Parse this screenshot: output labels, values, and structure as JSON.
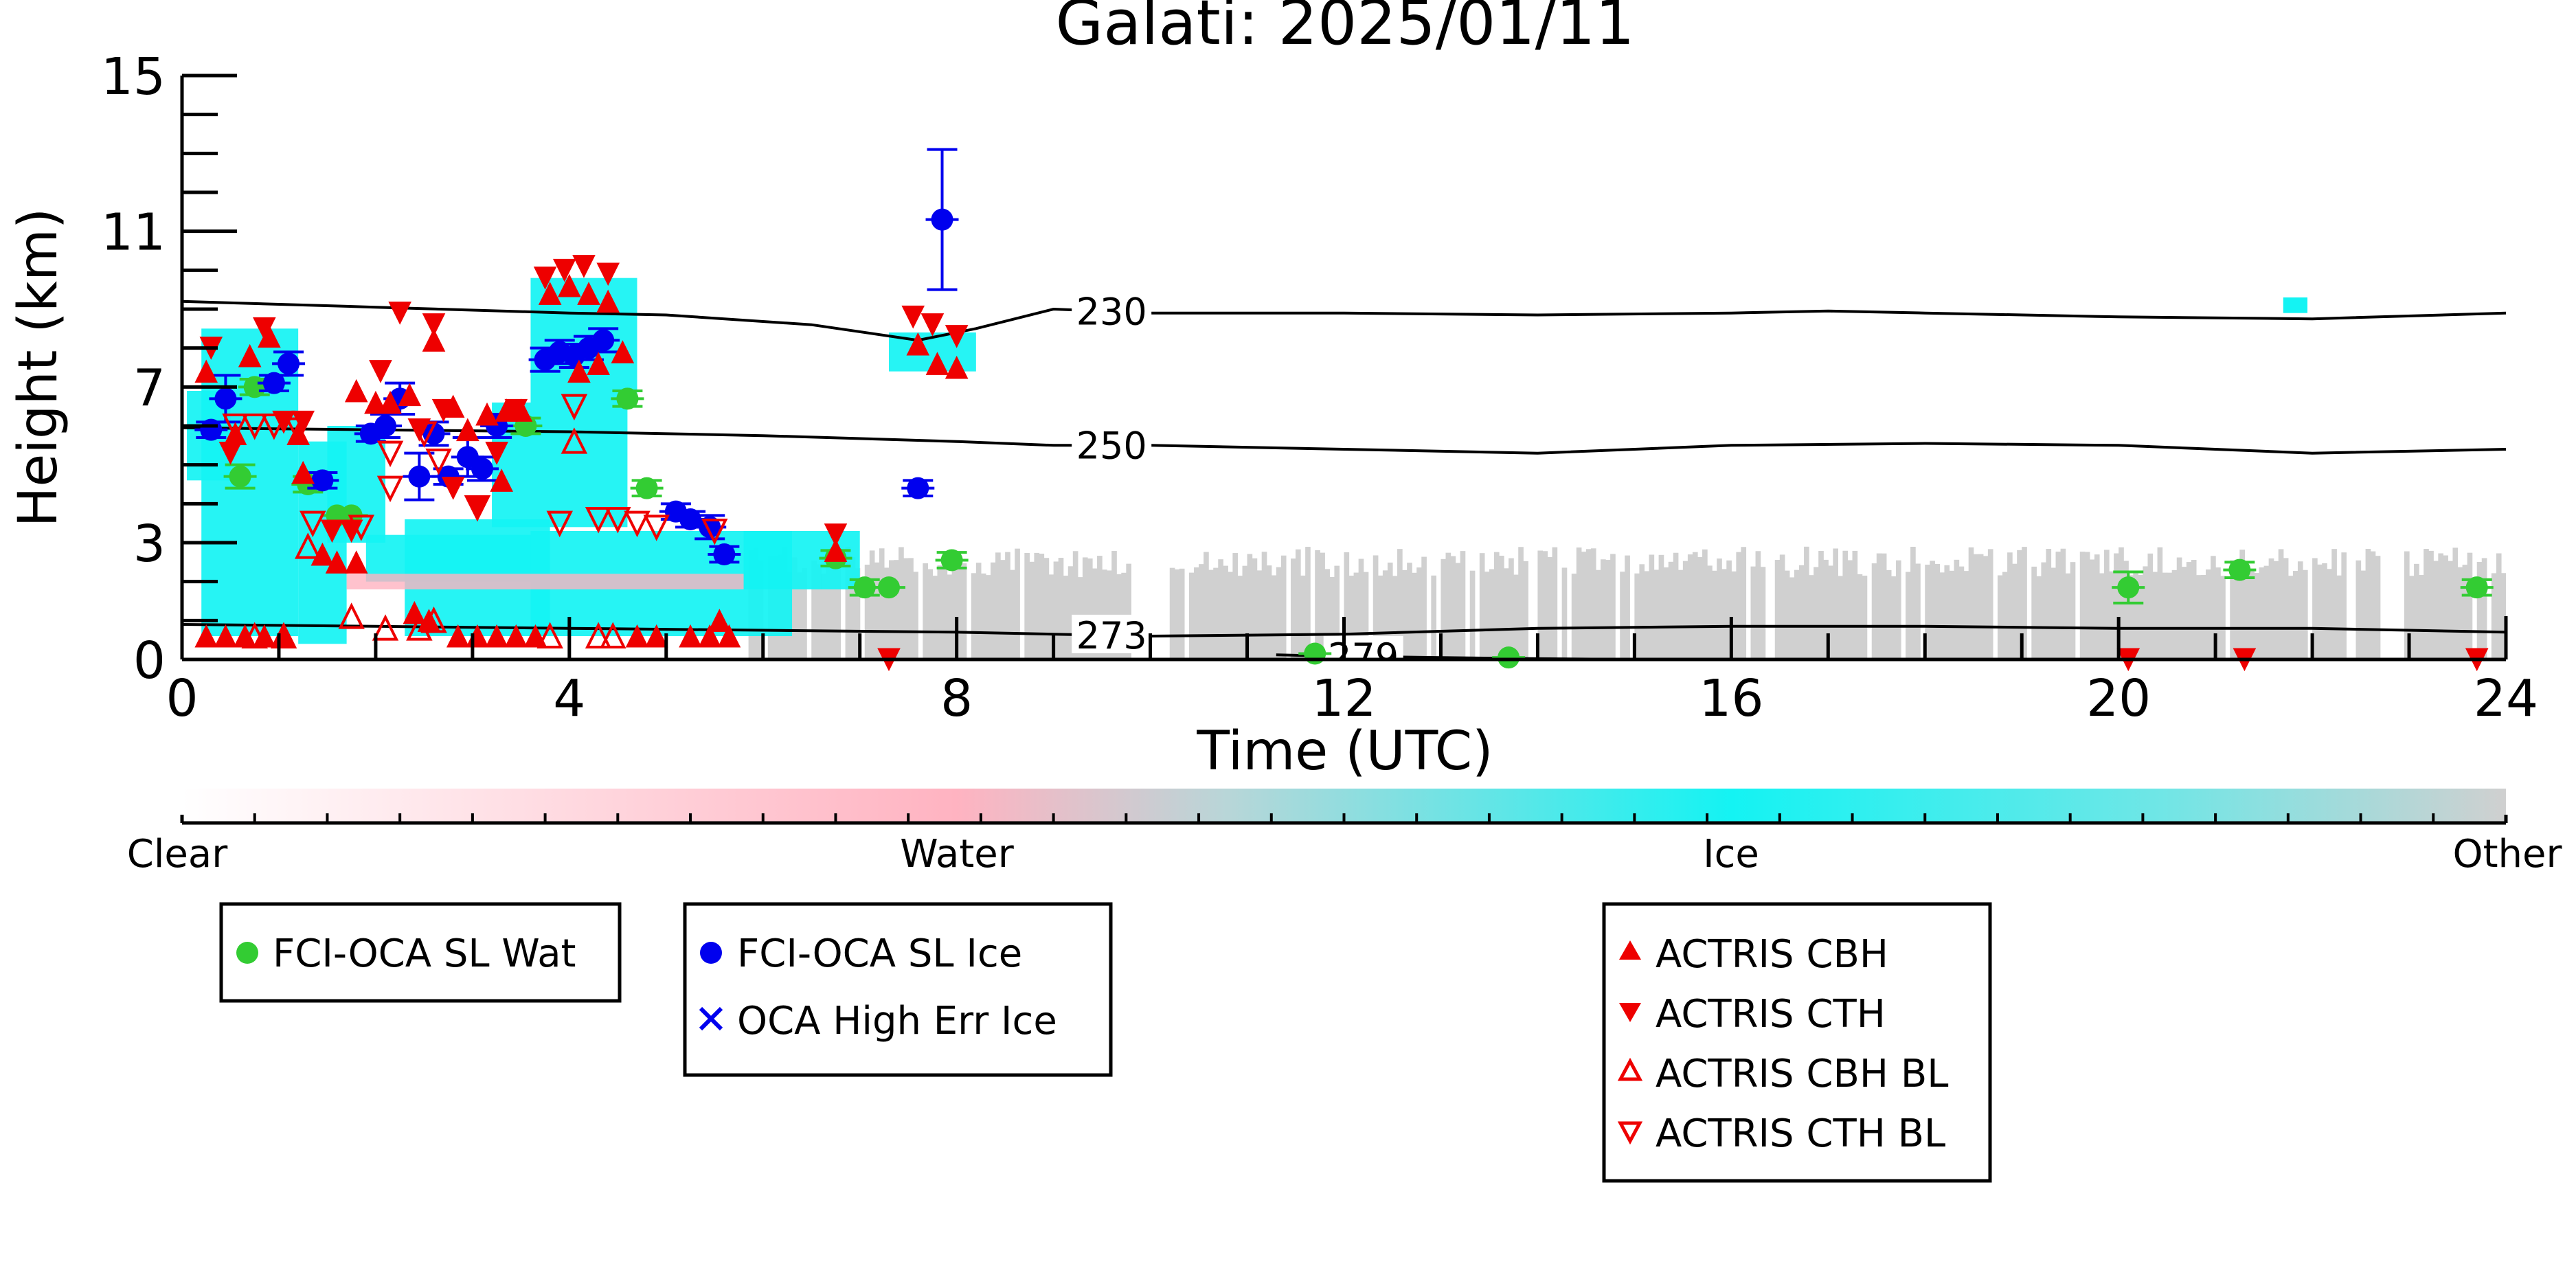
{
  "chart_data": {
    "type": "scatter",
    "title": "Galati: 2025/01/11",
    "xlabel": "Time (UTC)",
    "ylabel": "Height (km)",
    "xlim": [
      0,
      24
    ],
    "ylim": [
      0,
      15
    ],
    "xticks": [
      0,
      4,
      8,
      12,
      16,
      20,
      24
    ],
    "yticks": [
      0,
      3,
      7,
      11,
      15
    ],
    "grid": false,
    "colorbar": {
      "labels": [
        "Clear",
        "Water",
        "Ice",
        "Other"
      ],
      "colors": {
        "clear": "#ffffff",
        "water": "#ffb3c1",
        "ice": "#14f3f3",
        "other": "#d0d0d0"
      }
    },
    "isotherms": [
      {
        "label": "230",
        "label_x": 9.6,
        "points": [
          [
            0,
            9.2
          ],
          [
            2,
            9.05
          ],
          [
            4,
            8.9
          ],
          [
            5,
            8.85
          ],
          [
            6.5,
            8.6
          ],
          [
            7.6,
            8.2
          ],
          [
            8.2,
            8.5
          ],
          [
            9,
            9.0
          ],
          [
            10,
            8.9
          ],
          [
            12,
            8.9
          ],
          [
            14,
            8.85
          ],
          [
            16,
            8.9
          ],
          [
            17,
            8.95
          ],
          [
            18,
            8.9
          ],
          [
            20,
            8.8
          ],
          [
            22,
            8.75
          ],
          [
            24,
            8.9
          ]
        ]
      },
      {
        "label": "250",
        "label_x": 9.6,
        "points": [
          [
            0,
            5.95
          ],
          [
            2,
            5.9
          ],
          [
            4,
            5.85
          ],
          [
            6,
            5.75
          ],
          [
            8,
            5.6
          ],
          [
            9,
            5.5
          ],
          [
            10,
            5.5
          ],
          [
            12,
            5.4
          ],
          [
            14,
            5.3
          ],
          [
            16,
            5.5
          ],
          [
            18,
            5.55
          ],
          [
            20,
            5.5
          ],
          [
            22,
            5.3
          ],
          [
            24,
            5.4
          ]
        ]
      },
      {
        "label": "273",
        "label_x": 9.6,
        "points": [
          [
            0,
            0.9
          ],
          [
            2,
            0.85
          ],
          [
            4,
            0.8
          ],
          [
            6,
            0.75
          ],
          [
            8,
            0.7
          ],
          [
            9,
            0.65
          ],
          [
            10,
            0.6
          ],
          [
            12,
            0.65
          ],
          [
            14,
            0.8
          ],
          [
            16,
            0.85
          ],
          [
            18,
            0.85
          ],
          [
            20,
            0.8
          ],
          [
            22,
            0.8
          ],
          [
            23,
            0.75
          ],
          [
            24,
            0.7
          ]
        ]
      },
      {
        "label": "279",
        "label_x": 12.2,
        "points": [
          [
            11.3,
            0.12
          ],
          [
            12,
            0.08
          ],
          [
            13,
            0.05
          ],
          [
            14,
            0.02
          ],
          [
            15,
            0.0
          ]
        ]
      }
    ],
    "legends": [
      {
        "entries": [
          {
            "marker": "circle",
            "color": "#33cc33",
            "label": "FCI-OCA SL Wat"
          }
        ]
      },
      {
        "entries": [
          {
            "marker": "circle",
            "color": "#0000ee",
            "label": "FCI-OCA SL Ice"
          },
          {
            "marker": "x",
            "color": "#0000ee",
            "label": "OCA High Err Ice"
          }
        ]
      },
      {
        "entries": [
          {
            "marker": "triangle-up",
            "color": "#ee0000",
            "label": "ACTRIS CBH"
          },
          {
            "marker": "triangle-down",
            "color": "#ee0000",
            "label": "ACTRIS CTH"
          },
          {
            "marker": "triangle-up-open",
            "color": "#ee0000",
            "label": "ACTRIS CBH BL"
          },
          {
            "marker": "triangle-down-open",
            "color": "#ee0000",
            "label": "ACTRIS CTH BL"
          }
        ]
      }
    ],
    "series": [
      {
        "name": "FCI-OCA SL Wat",
        "color": "#33cc33",
        "points": [
          {
            "x": 0.6,
            "y": 4.7,
            "err": 0.3
          },
          {
            "x": 0.75,
            "y": 7.0,
            "err": 0.2
          },
          {
            "x": 1.3,
            "y": 4.5,
            "err": 0.2
          },
          {
            "x": 1.6,
            "y": 3.7
          },
          {
            "x": 1.75,
            "y": 3.7
          },
          {
            "x": 3.55,
            "y": 6.0,
            "err": 0.2
          },
          {
            "x": 4.6,
            "y": 6.7,
            "err": 0.2
          },
          {
            "x": 4.8,
            "y": 4.4,
            "err": 0.2
          },
          {
            "x": 6.75,
            "y": 2.6,
            "err": 0.2
          },
          {
            "x": 7.05,
            "y": 1.85,
            "err": 0.2
          },
          {
            "x": 7.3,
            "y": 1.85
          },
          {
            "x": 7.95,
            "y": 2.55,
            "err": 0.2
          },
          {
            "x": 11.7,
            "y": 0.15
          },
          {
            "x": 13.7,
            "y": 0.05
          },
          {
            "x": 20.1,
            "y": 1.85,
            "err": 0.4
          },
          {
            "x": 21.25,
            "y": 2.3,
            "err": 0.2
          },
          {
            "x": 23.7,
            "y": 1.85,
            "err": 0.2
          }
        ]
      },
      {
        "name": "FCI-OCA SL Ice",
        "color": "#0000ee",
        "points": [
          {
            "x": 0.3,
            "y": 5.9,
            "err": 0.2
          },
          {
            "x": 0.45,
            "y": 6.7,
            "err": 0.6
          },
          {
            "x": 0.95,
            "y": 7.1,
            "err": 0.2
          },
          {
            "x": 1.1,
            "y": 7.6,
            "err": 0.3
          },
          {
            "x": 1.45,
            "y": 4.6,
            "err": 0.2
          },
          {
            "x": 1.95,
            "y": 5.8,
            "err": 0.2
          },
          {
            "x": 2.1,
            "y": 6.0,
            "err": 0.3
          },
          {
            "x": 2.25,
            "y": 6.7,
            "err": 0.4
          },
          {
            "x": 2.45,
            "y": 4.7,
            "err": 0.6
          },
          {
            "x": 2.6,
            "y": 5.8,
            "err": 0.3
          },
          {
            "x": 2.75,
            "y": 4.7,
            "err": 0.2
          },
          {
            "x": 2.95,
            "y": 5.2,
            "err": 0.5
          },
          {
            "x": 3.1,
            "y": 4.9,
            "err": 0.3
          },
          {
            "x": 3.25,
            "y": 6.0,
            "err": 0.3
          },
          {
            "x": 3.75,
            "y": 7.7,
            "err": 0.3
          },
          {
            "x": 3.9,
            "y": 7.9,
            "err": 0.3
          },
          {
            "x": 4.05,
            "y": 7.8,
            "err": 0.3
          },
          {
            "x": 4.2,
            "y": 8.0,
            "err": 0.3
          },
          {
            "x": 4.35,
            "y": 8.2,
            "err": 0.3
          },
          {
            "x": 5.1,
            "y": 3.8,
            "err": 0.2
          },
          {
            "x": 5.25,
            "y": 3.6,
            "err": 0.2
          },
          {
            "x": 5.45,
            "y": 3.4,
            "err": 0.3
          },
          {
            "x": 5.6,
            "y": 2.7,
            "err": 0.2
          },
          {
            "x": 7.6,
            "y": 4.4,
            "err": 0.2
          },
          {
            "x": 7.85,
            "y": 11.3,
            "err": 1.8
          }
        ]
      },
      {
        "name": "ACTRIS CBH",
        "color": "#ee0000",
        "points": [
          {
            "x": 0.25,
            "y": 0.6
          },
          {
            "x": 0.45,
            "y": 0.6
          },
          {
            "x": 0.65,
            "y": 0.6
          },
          {
            "x": 0.85,
            "y": 0.6
          },
          {
            "x": 1.05,
            "y": 0.6
          },
          {
            "x": 0.25,
            "y": 7.4
          },
          {
            "x": 0.55,
            "y": 5.8
          },
          {
            "x": 0.7,
            "y": 7.8
          },
          {
            "x": 0.9,
            "y": 8.3
          },
          {
            "x": 1.2,
            "y": 5.8
          },
          {
            "x": 1.25,
            "y": 4.8
          },
          {
            "x": 1.45,
            "y": 2.7
          },
          {
            "x": 1.6,
            "y": 2.5
          },
          {
            "x": 1.8,
            "y": 2.5
          },
          {
            "x": 1.8,
            "y": 6.9
          },
          {
            "x": 2.0,
            "y": 6.6
          },
          {
            "x": 2.15,
            "y": 6.6
          },
          {
            "x": 2.35,
            "y": 6.8
          },
          {
            "x": 2.4,
            "y": 1.2
          },
          {
            "x": 2.55,
            "y": 1.0
          },
          {
            "x": 2.6,
            "y": 8.2
          },
          {
            "x": 2.8,
            "y": 6.5
          },
          {
            "x": 2.95,
            "y": 5.9
          },
          {
            "x": 3.15,
            "y": 6.3
          },
          {
            "x": 3.35,
            "y": 6.4
          },
          {
            "x": 3.5,
            "y": 6.4
          },
          {
            "x": 3.3,
            "y": 4.6
          },
          {
            "x": 3.8,
            "y": 9.4
          },
          {
            "x": 4.0,
            "y": 9.6
          },
          {
            "x": 4.2,
            "y": 9.4
          },
          {
            "x": 4.4,
            "y": 9.2
          },
          {
            "x": 4.55,
            "y": 7.9
          },
          {
            "x": 4.1,
            "y": 7.4
          },
          {
            "x": 4.3,
            "y": 7.6
          },
          {
            "x": 2.85,
            "y": 0.6
          },
          {
            "x": 3.05,
            "y": 0.6
          },
          {
            "x": 3.25,
            "y": 0.6
          },
          {
            "x": 3.45,
            "y": 0.6
          },
          {
            "x": 3.65,
            "y": 0.6
          },
          {
            "x": 4.7,
            "y": 0.6
          },
          {
            "x": 4.9,
            "y": 0.6
          },
          {
            "x": 5.25,
            "y": 0.6
          },
          {
            "x": 5.45,
            "y": 0.6
          },
          {
            "x": 5.65,
            "y": 0.6
          },
          {
            "x": 5.55,
            "y": 1.0
          },
          {
            "x": 6.75,
            "y": 2.8
          },
          {
            "x": 7.6,
            "y": 8.1
          },
          {
            "x": 7.8,
            "y": 7.6
          },
          {
            "x": 8.0,
            "y": 7.5
          }
        ]
      },
      {
        "name": "ACTRIS CTH",
        "color": "#ee0000",
        "points": [
          {
            "x": 0.3,
            "y": 8.0
          },
          {
            "x": 0.5,
            "y": 5.3
          },
          {
            "x": 0.85,
            "y": 8.5
          },
          {
            "x": 1.05,
            "y": 6.1
          },
          {
            "x": 1.25,
            "y": 6.1
          },
          {
            "x": 1.55,
            "y": 3.3
          },
          {
            "x": 1.75,
            "y": 3.3
          },
          {
            "x": 2.05,
            "y": 7.4
          },
          {
            "x": 2.25,
            "y": 8.9
          },
          {
            "x": 2.45,
            "y": 5.9
          },
          {
            "x": 2.6,
            "y": 8.6
          },
          {
            "x": 2.7,
            "y": 6.4
          },
          {
            "x": 2.8,
            "y": 4.4
          },
          {
            "x": 3.05,
            "y": 3.9
          },
          {
            "x": 3.25,
            "y": 5.3
          },
          {
            "x": 3.45,
            "y": 6.4
          },
          {
            "x": 3.75,
            "y": 9.8
          },
          {
            "x": 3.95,
            "y": 10.0
          },
          {
            "x": 4.15,
            "y": 10.1
          },
          {
            "x": 4.4,
            "y": 9.9
          },
          {
            "x": 6.75,
            "y": 3.2
          },
          {
            "x": 7.55,
            "y": 8.8
          },
          {
            "x": 7.75,
            "y": 8.6
          },
          {
            "x": 8.0,
            "y": 8.3
          },
          {
            "x": 7.3,
            "y": 0.0
          },
          {
            "x": 20.1,
            "y": 0.0
          },
          {
            "x": 21.3,
            "y": 0.0
          },
          {
            "x": 23.7,
            "y": 0.0
          }
        ]
      },
      {
        "name": "ACTRIS CBH BL",
        "color": "#ee0000",
        "points": [
          {
            "x": 1.3,
            "y": 2.9
          },
          {
            "x": 1.75,
            "y": 1.1
          },
          {
            "x": 2.1,
            "y": 0.8
          },
          {
            "x": 2.45,
            "y": 0.8
          },
          {
            "x": 2.6,
            "y": 1.0
          },
          {
            "x": 3.8,
            "y": 0.6
          },
          {
            "x": 4.3,
            "y": 0.6
          },
          {
            "x": 4.45,
            "y": 0.6
          },
          {
            "x": 4.05,
            "y": 5.6
          },
          {
            "x": 1.05,
            "y": 0.6
          },
          {
            "x": 0.75,
            "y": 0.6
          }
        ]
      },
      {
        "name": "ACTRIS CTH BL",
        "color": "#ee0000",
        "points": [
          {
            "x": 0.55,
            "y": 6.0
          },
          {
            "x": 0.75,
            "y": 6.0
          },
          {
            "x": 0.95,
            "y": 6.0
          },
          {
            "x": 1.2,
            "y": 5.9
          },
          {
            "x": 1.35,
            "y": 3.5
          },
          {
            "x": 1.85,
            "y": 3.4
          },
          {
            "x": 2.15,
            "y": 4.4
          },
          {
            "x": 2.15,
            "y": 5.3
          },
          {
            "x": 2.65,
            "y": 5.1
          },
          {
            "x": 3.05,
            "y": 3.9
          },
          {
            "x": 3.9,
            "y": 3.5
          },
          {
            "x": 4.05,
            "y": 6.5
          },
          {
            "x": 4.3,
            "y": 3.6
          },
          {
            "x": 4.5,
            "y": 3.6
          },
          {
            "x": 4.7,
            "y": 3.5
          },
          {
            "x": 4.9,
            "y": 3.4
          },
          {
            "x": 5.5,
            "y": 3.3
          },
          {
            "x": 2.5,
            "y": 5.8
          }
        ]
      }
    ]
  }
}
